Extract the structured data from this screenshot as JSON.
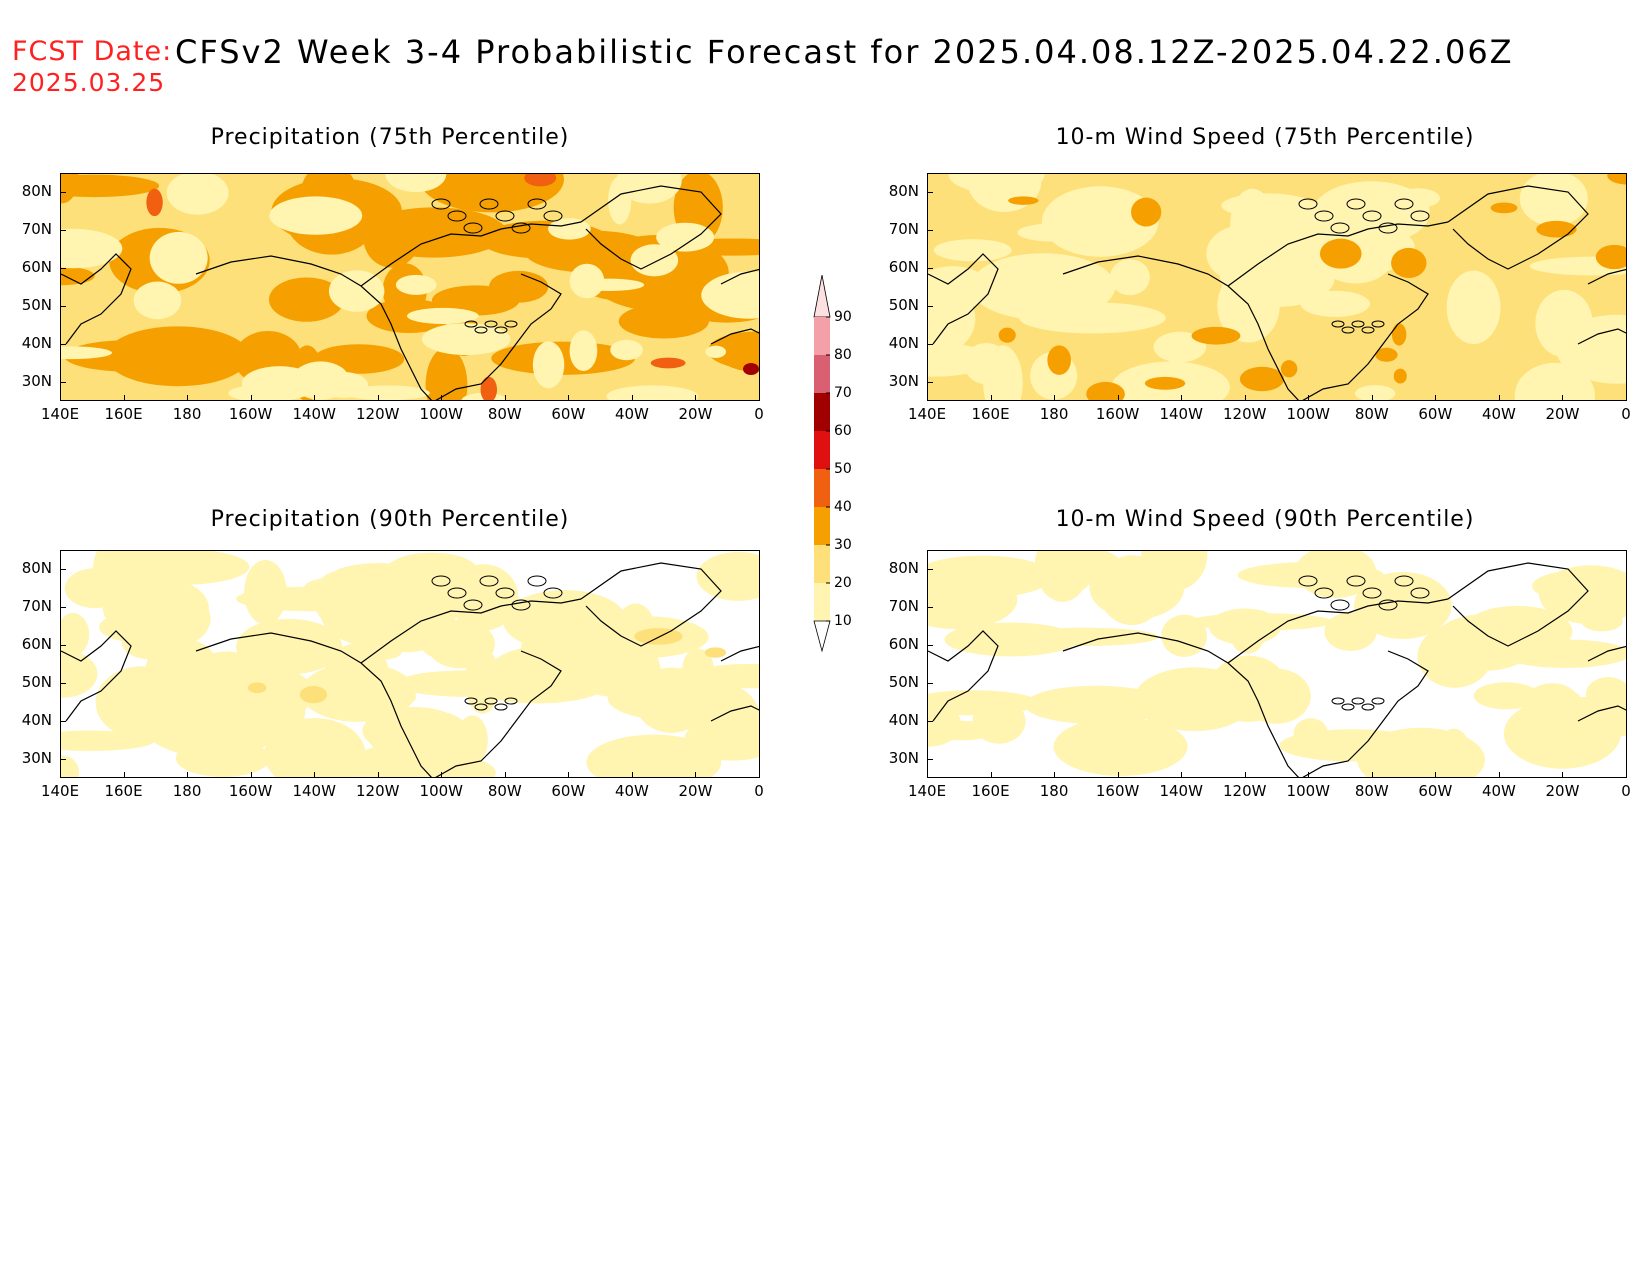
{
  "header": {
    "fcst_label": "FCST Date:",
    "fcst_date": "2025.03.25",
    "title": "CFSv2 Week 3-4 Probabilistic Forecast for 2025.04.08.12Z-2025.04.22.06Z"
  },
  "panels": [
    {
      "title": "Precipitation (75th Percentile)",
      "level": "high",
      "id": "p75"
    },
    {
      "title": "10-m Wind Speed (75th Percentile)",
      "level": "mid",
      "id": "w75"
    },
    {
      "title": "Precipitation (90th Percentile)",
      "level": "low",
      "id": "p90"
    },
    {
      "title": "10-m Wind Speed (90th Percentile)",
      "level": "vlow",
      "id": "w90"
    }
  ],
  "axes": {
    "lat_labels": [
      "80N",
      "70N",
      "60N",
      "50N",
      "40N",
      "30N"
    ],
    "lon_labels": [
      "140E",
      "160E",
      "180",
      "160W",
      "140W",
      "120W",
      "100W",
      "80W",
      "60W",
      "40W",
      "20W",
      "0"
    ]
  },
  "colorbar": {
    "levels": [
      "90",
      "80",
      "70",
      "60",
      "50",
      "40",
      "30",
      "20",
      "10"
    ],
    "colors": [
      "#fde0e0",
      "#f4a0a8",
      "#d86070",
      "#a00000",
      "#e01010",
      "#f06010",
      "#f5a000",
      "#fde07a",
      "#fff4b0"
    ]
  }
}
